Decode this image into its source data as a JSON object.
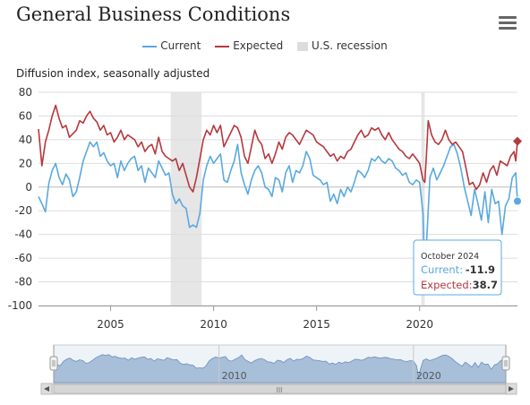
{
  "title": "General Business Conditions",
  "legend": {
    "current": "Current",
    "expected": "Expected",
    "recession": "U.S. recession"
  },
  "colors": {
    "current": "#5aa9df",
    "expected": "#b5383e",
    "recession": "#e6e6e6",
    "navigator": "#a8bfd9"
  },
  "tooltip": {
    "date": "October 2024",
    "current_label": "Current:",
    "current_value": "-11.9",
    "expected_label": "Expected:",
    "expected_value": "38.7"
  },
  "navigator": {
    "labels": [
      "2010",
      "2020"
    ],
    "scroll_grip": "III"
  },
  "chart_data": {
    "type": "line",
    "title": "General Business Conditions",
    "ylabel": "Diffusion index, seasonally adjusted",
    "ylim": [
      -100,
      80
    ],
    "yticks": [
      "80",
      "60",
      "40",
      "20",
      "0",
      "-20",
      "-40",
      "-60",
      "-80",
      "-100"
    ],
    "xlim": [
      "2001-07",
      "2024-10"
    ],
    "xticks": [
      "2005",
      "2010",
      "2015",
      "2020"
    ],
    "recessions": [
      [
        "2007-12",
        "2009-06"
      ],
      [
        "2020-02",
        "2020-04"
      ]
    ],
    "grid": true,
    "legend_position": "top",
    "series": [
      {
        "name": "Current",
        "points": [
          [
            "2001-07",
            -8
          ],
          [
            "2001-09",
            -14
          ],
          [
            "2001-11",
            -21
          ],
          [
            "2002-01",
            3
          ],
          [
            "2002-03",
            14
          ],
          [
            "2002-05",
            20
          ],
          [
            "2002-07",
            8
          ],
          [
            "2002-09",
            2
          ],
          [
            "2002-11",
            11
          ],
          [
            "2003-01",
            6
          ],
          [
            "2003-03",
            -8
          ],
          [
            "2003-05",
            -4
          ],
          [
            "2003-07",
            8
          ],
          [
            "2003-09",
            22
          ],
          [
            "2003-11",
            30
          ],
          [
            "2004-01",
            38
          ],
          [
            "2004-03",
            34
          ],
          [
            "2004-05",
            38
          ],
          [
            "2004-07",
            26
          ],
          [
            "2004-09",
            29
          ],
          [
            "2004-11",
            22
          ],
          [
            "2005-01",
            18
          ],
          [
            "2005-03",
            20
          ],
          [
            "2005-05",
            8
          ],
          [
            "2005-07",
            22
          ],
          [
            "2005-09",
            14
          ],
          [
            "2005-11",
            20
          ],
          [
            "2006-01",
            24
          ],
          [
            "2006-03",
            26
          ],
          [
            "2006-05",
            14
          ],
          [
            "2006-07",
            18
          ],
          [
            "2006-09",
            4
          ],
          [
            "2006-11",
            16
          ],
          [
            "2007-01",
            12
          ],
          [
            "2007-03",
            8
          ],
          [
            "2007-05",
            22
          ],
          [
            "2007-07",
            16
          ],
          [
            "2007-09",
            10
          ],
          [
            "2007-11",
            12
          ],
          [
            "2008-01",
            -6
          ],
          [
            "2008-03",
            -14
          ],
          [
            "2008-05",
            -10
          ],
          [
            "2008-07",
            -16
          ],
          [
            "2008-09",
            -18
          ],
          [
            "2008-11",
            -34
          ],
          [
            "2009-01",
            -32
          ],
          [
            "2009-03",
            -34
          ],
          [
            "2009-05",
            -22
          ],
          [
            "2009-07",
            6
          ],
          [
            "2009-09",
            18
          ],
          [
            "2009-11",
            26
          ],
          [
            "2010-01",
            20
          ],
          [
            "2010-03",
            24
          ],
          [
            "2010-05",
            28
          ],
          [
            "2010-07",
            6
          ],
          [
            "2010-09",
            4
          ],
          [
            "2010-11",
            14
          ],
          [
            "2011-01",
            22
          ],
          [
            "2011-03",
            36
          ],
          [
            "2011-05",
            12
          ],
          [
            "2011-07",
            2
          ],
          [
            "2011-09",
            -6
          ],
          [
            "2011-11",
            6
          ],
          [
            "2012-01",
            14
          ],
          [
            "2012-03",
            18
          ],
          [
            "2012-05",
            12
          ],
          [
            "2012-07",
            0
          ],
          [
            "2012-09",
            -2
          ],
          [
            "2012-11",
            -8
          ],
          [
            "2013-01",
            8
          ],
          [
            "2013-03",
            6
          ],
          [
            "2013-05",
            -4
          ],
          [
            "2013-07",
            12
          ],
          [
            "2013-09",
            18
          ],
          [
            "2013-11",
            4
          ],
          [
            "2014-01",
            14
          ],
          [
            "2014-03",
            12
          ],
          [
            "2014-05",
            18
          ],
          [
            "2014-07",
            30
          ],
          [
            "2014-09",
            24
          ],
          [
            "2014-11",
            10
          ],
          [
            "2015-01",
            8
          ],
          [
            "2015-03",
            6
          ],
          [
            "2015-05",
            2
          ],
          [
            "2015-07",
            4
          ],
          [
            "2015-09",
            -12
          ],
          [
            "2015-11",
            -6
          ],
          [
            "2016-01",
            -14
          ],
          [
            "2016-03",
            -2
          ],
          [
            "2016-05",
            -8
          ],
          [
            "2016-07",
            0
          ],
          [
            "2016-09",
            -4
          ],
          [
            "2016-11",
            4
          ],
          [
            "2017-01",
            14
          ],
          [
            "2017-03",
            12
          ],
          [
            "2017-05",
            8
          ],
          [
            "2017-07",
            14
          ],
          [
            "2017-09",
            24
          ],
          [
            "2017-11",
            22
          ],
          [
            "2018-01",
            26
          ],
          [
            "2018-03",
            22
          ],
          [
            "2018-05",
            20
          ],
          [
            "2018-07",
            24
          ],
          [
            "2018-09",
            22
          ],
          [
            "2018-11",
            16
          ],
          [
            "2019-01",
            14
          ],
          [
            "2019-03",
            10
          ],
          [
            "2019-05",
            12
          ],
          [
            "2019-07",
            4
          ],
          [
            "2019-09",
            2
          ],
          [
            "2019-11",
            6
          ],
          [
            "2020-01",
            4
          ],
          [
            "2020-03",
            -22
          ],
          [
            "2020-04",
            -78
          ],
          [
            "2020-05",
            -48
          ],
          [
            "2020-07",
            8
          ],
          [
            "2020-09",
            16
          ],
          [
            "2020-11",
            6
          ],
          [
            "2021-01",
            12
          ],
          [
            "2021-03",
            18
          ],
          [
            "2021-05",
            26
          ],
          [
            "2021-07",
            34
          ],
          [
            "2021-09",
            36
          ],
          [
            "2021-11",
            28
          ],
          [
            "2022-01",
            16
          ],
          [
            "2022-03",
            0
          ],
          [
            "2022-05",
            -12
          ],
          [
            "2022-07",
            -24
          ],
          [
            "2022-09",
            -2
          ],
          [
            "2022-11",
            -14
          ],
          [
            "2023-01",
            -28
          ],
          [
            "2023-03",
            -4
          ],
          [
            "2023-05",
            -30
          ],
          [
            "2023-07",
            -2
          ],
          [
            "2023-09",
            -14
          ],
          [
            "2023-11",
            -12
          ],
          [
            "2024-01",
            -40
          ],
          [
            "2024-03",
            -16
          ],
          [
            "2024-05",
            -10
          ],
          [
            "2024-07",
            8
          ],
          [
            "2024-09",
            12
          ],
          [
            "2024-10",
            -11.9
          ]
        ]
      },
      {
        "name": "Expected",
        "points": [
          [
            "2001-07",
            49
          ],
          [
            "2001-09",
            18
          ],
          [
            "2001-11",
            38
          ],
          [
            "2002-01",
            48
          ],
          [
            "2002-03",
            60
          ],
          [
            "2002-05",
            69
          ],
          [
            "2002-07",
            58
          ],
          [
            "2002-09",
            50
          ],
          [
            "2002-11",
            52
          ],
          [
            "2003-01",
            42
          ],
          [
            "2003-03",
            45
          ],
          [
            "2003-05",
            48
          ],
          [
            "2003-07",
            56
          ],
          [
            "2003-09",
            54
          ],
          [
            "2003-11",
            60
          ],
          [
            "2004-01",
            64
          ],
          [
            "2004-03",
            58
          ],
          [
            "2004-05",
            55
          ],
          [
            "2004-07",
            48
          ],
          [
            "2004-09",
            52
          ],
          [
            "2004-11",
            44
          ],
          [
            "2005-01",
            46
          ],
          [
            "2005-03",
            38
          ],
          [
            "2005-05",
            42
          ],
          [
            "2005-07",
            48
          ],
          [
            "2005-09",
            40
          ],
          [
            "2005-11",
            44
          ],
          [
            "2006-01",
            42
          ],
          [
            "2006-03",
            40
          ],
          [
            "2006-05",
            34
          ],
          [
            "2006-07",
            38
          ],
          [
            "2006-09",
            30
          ],
          [
            "2006-11",
            34
          ],
          [
            "2007-01",
            36
          ],
          [
            "2007-03",
            28
          ],
          [
            "2007-05",
            42
          ],
          [
            "2007-07",
            30
          ],
          [
            "2007-09",
            26
          ],
          [
            "2007-11",
            24
          ],
          [
            "2008-01",
            22
          ],
          [
            "2008-03",
            24
          ],
          [
            "2008-05",
            14
          ],
          [
            "2008-07",
            20
          ],
          [
            "2008-09",
            10
          ],
          [
            "2008-11",
            0
          ],
          [
            "2009-01",
            -4
          ],
          [
            "2009-03",
            8
          ],
          [
            "2009-05",
            24
          ],
          [
            "2009-07",
            40
          ],
          [
            "2009-09",
            48
          ],
          [
            "2009-11",
            44
          ],
          [
            "2010-01",
            52
          ],
          [
            "2010-03",
            46
          ],
          [
            "2010-05",
            52
          ],
          [
            "2010-07",
            34
          ],
          [
            "2010-09",
            40
          ],
          [
            "2010-11",
            46
          ],
          [
            "2011-01",
            52
          ],
          [
            "2011-03",
            50
          ],
          [
            "2011-05",
            42
          ],
          [
            "2011-07",
            26
          ],
          [
            "2011-09",
            20
          ],
          [
            "2011-11",
            34
          ],
          [
            "2012-01",
            48
          ],
          [
            "2012-03",
            40
          ],
          [
            "2012-05",
            36
          ],
          [
            "2012-07",
            24
          ],
          [
            "2012-09",
            28
          ],
          [
            "2012-11",
            20
          ],
          [
            "2013-01",
            28
          ],
          [
            "2013-03",
            38
          ],
          [
            "2013-05",
            32
          ],
          [
            "2013-07",
            42
          ],
          [
            "2013-09",
            46
          ],
          [
            "2013-11",
            44
          ],
          [
            "2014-01",
            40
          ],
          [
            "2014-03",
            36
          ],
          [
            "2014-05",
            42
          ],
          [
            "2014-07",
            48
          ],
          [
            "2014-09",
            46
          ],
          [
            "2014-11",
            44
          ],
          [
            "2015-01",
            38
          ],
          [
            "2015-03",
            36
          ],
          [
            "2015-05",
            34
          ],
          [
            "2015-07",
            30
          ],
          [
            "2015-09",
            26
          ],
          [
            "2015-11",
            28
          ],
          [
            "2016-01",
            22
          ],
          [
            "2016-03",
            26
          ],
          [
            "2016-05",
            24
          ],
          [
            "2016-07",
            30
          ],
          [
            "2016-09",
            32
          ],
          [
            "2016-11",
            38
          ],
          [
            "2017-01",
            44
          ],
          [
            "2017-03",
            48
          ],
          [
            "2017-05",
            42
          ],
          [
            "2017-07",
            44
          ],
          [
            "2017-09",
            50
          ],
          [
            "2017-11",
            48
          ],
          [
            "2018-01",
            50
          ],
          [
            "2018-03",
            44
          ],
          [
            "2018-05",
            40
          ],
          [
            "2018-07",
            46
          ],
          [
            "2018-09",
            40
          ],
          [
            "2018-11",
            36
          ],
          [
            "2019-01",
            32
          ],
          [
            "2019-03",
            30
          ],
          [
            "2019-05",
            26
          ],
          [
            "2019-07",
            24
          ],
          [
            "2019-09",
            28
          ],
          [
            "2019-11",
            24
          ],
          [
            "2020-01",
            20
          ],
          [
            "2020-03",
            6
          ],
          [
            "2020-04",
            4
          ],
          [
            "2020-05",
            28
          ],
          [
            "2020-06",
            56
          ],
          [
            "2020-08",
            44
          ],
          [
            "2020-10",
            38
          ],
          [
            "2020-12",
            36
          ],
          [
            "2021-02",
            40
          ],
          [
            "2021-04",
            48
          ],
          [
            "2021-06",
            40
          ],
          [
            "2021-08",
            36
          ],
          [
            "2021-10",
            38
          ],
          [
            "2021-12",
            34
          ],
          [
            "2022-02",
            30
          ],
          [
            "2022-04",
            16
          ],
          [
            "2022-06",
            2
          ],
          [
            "2022-08",
            4
          ],
          [
            "2022-10",
            -2
          ],
          [
            "2022-12",
            2
          ],
          [
            "2023-02",
            12
          ],
          [
            "2023-04",
            4
          ],
          [
            "2023-06",
            14
          ],
          [
            "2023-08",
            18
          ],
          [
            "2023-10",
            10
          ],
          [
            "2023-12",
            22
          ],
          [
            "2024-02",
            20
          ],
          [
            "2024-04",
            18
          ],
          [
            "2024-06",
            26
          ],
          [
            "2024-08",
            30
          ],
          [
            "2024-09",
            22
          ],
          [
            "2024-10",
            38.7
          ]
        ]
      }
    ]
  }
}
